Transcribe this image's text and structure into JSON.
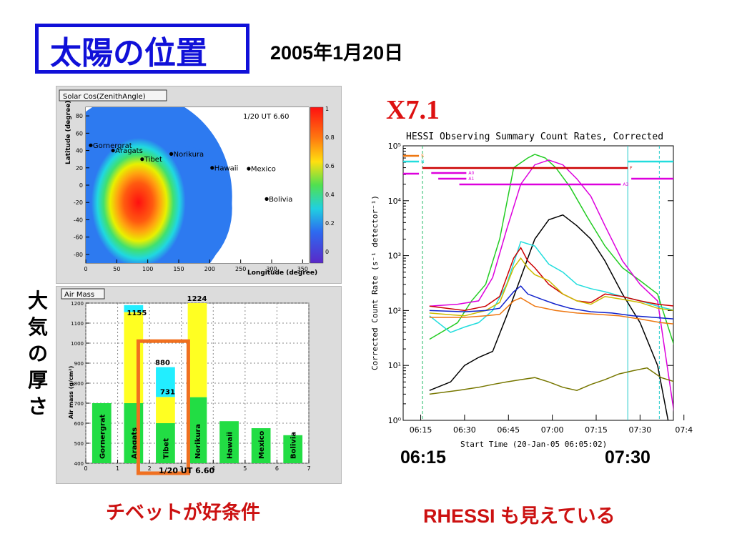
{
  "header": {
    "title": "太陽の位置",
    "date": "2005年1月20日"
  },
  "side_label": "大気の厚さ",
  "captions": {
    "left": "チベットが好条件",
    "right": "RHESSI も見えている",
    "flare_class": "X7.1",
    "time_start": "06:15",
    "time_end": "07:30"
  },
  "colors": {
    "title_blue": "#1010d8",
    "caption_red": "#cc1111",
    "highlight_orange": "#f07020",
    "bar_green": "#22dd44",
    "bar_yellow": "#ffff22",
    "bar_cyan": "#22eeff"
  },
  "chart_data": [
    {
      "type": "heatmap",
      "title": "Solar Cos(ZenithAngle)",
      "annotation": "1/20  UT  6.60",
      "xlabel": "Longitude (degree)",
      "ylabel": "Latitude (degree)",
      "xlim": [
        0,
        360
      ],
      "ylim": [
        -90,
        90
      ],
      "xticks": [
        0,
        50,
        100,
        150,
        200,
        250,
        300,
        350
      ],
      "yticks": [
        80,
        60,
        40,
        20,
        0,
        -20,
        -40,
        -60,
        -80
      ],
      "colorbar_ticks": [
        "1",
        "0.8",
        "0.6",
        "0.4",
        "0.2",
        "0"
      ],
      "peak": {
        "lon": 85,
        "lat": -20
      },
      "sites": [
        {
          "name": "Gornergrat",
          "lon": 8,
          "lat": 46
        },
        {
          "name": "Aragats",
          "lon": 44,
          "lat": 40
        },
        {
          "name": "Tibet",
          "lon": 91,
          "lat": 30
        },
        {
          "name": "Norikura",
          "lon": 138,
          "lat": 36
        },
        {
          "name": "Hawaii",
          "lon": 204,
          "lat": 20
        },
        {
          "name": "Mexico",
          "lon": 263,
          "lat": 19
        },
        {
          "name": "Bolivia",
          "lon": 292,
          "lat": -16
        }
      ]
    },
    {
      "type": "bar",
      "title": "Air Mass",
      "annotation": "1/20  UT  6.60",
      "ylabel": "Air mass (g/cm²)",
      "xlim": [
        0,
        7
      ],
      "ylim": [
        400,
        1200
      ],
      "xticks": [
        0,
        1,
        2,
        3,
        4,
        5,
        6,
        7
      ],
      "yticks": [
        400,
        500,
        600,
        700,
        800,
        900,
        1000,
        1100,
        1200
      ],
      "categories": [
        "Gornergrat",
        "Aragats",
        "Tibet",
        "Norikura",
        "Hawaii",
        "Mexico",
        "Bolivia"
      ],
      "series": [
        {
          "values": [
            700,
            700,
            600,
            730,
            610,
            575,
            540
          ]
        },
        {
          "values": [
            700,
            1155,
            731,
            1224,
            610,
            575,
            540
          ]
        },
        {
          "values": [
            700,
            1190,
            880,
            1224,
            610,
            575,
            540
          ]
        }
      ],
      "data_labels": [
        "",
        "1155",
        "880",
        "1224",
        "",
        "",
        ""
      ],
      "extra_label": "731",
      "highlight": "Tibet"
    },
    {
      "type": "line",
      "title": "HESSI Observing Summary Count Rates, Corrected",
      "xlabel": "Start Time (20-Jan-05 06:05:02)",
      "ylabel": "Corrected Count Rate (s⁻¹ detector⁻¹)",
      "yscale": "log",
      "ylim": [
        1,
        100000
      ],
      "ytick_labels": [
        "10⁵",
        "10⁴",
        "10³",
        "10²",
        "10¹",
        "10⁰"
      ],
      "xtick_labels": [
        "06:15",
        "06:30",
        "06:45",
        "07:00",
        "07:15",
        "07:30",
        "07:4"
      ],
      "attenuator_labels": [
        "S",
        "N",
        "F",
        "A0",
        "A1",
        "A3"
      ],
      "series": [
        {
          "name": "green",
          "color": "#22cc22",
          "x": [
            0,
            8,
            12,
            16,
            20,
            24,
            28,
            30,
            33,
            36,
            40,
            45,
            50,
            55,
            60,
            65,
            70,
            72
          ],
          "y": [
            30,
            60,
            150,
            300,
            2000,
            40000,
            60000,
            70000,
            60000,
            40000,
            18000,
            5000,
            1500,
            600,
            350,
            200,
            20,
            30
          ]
        },
        {
          "name": "magenta",
          "color": "#dd00dd",
          "x": [
            0,
            8,
            14,
            18,
            22,
            26,
            30,
            34,
            38,
            42,
            46,
            50,
            55,
            60,
            65,
            70,
            72
          ],
          "y": [
            120,
            130,
            150,
            400,
            3000,
            20000,
            45000,
            55000,
            45000,
            25000,
            12000,
            3500,
            800,
            300,
            150,
            1,
            1
          ]
        },
        {
          "name": "black",
          "color": "#000000",
          "x": [
            0,
            6,
            10,
            14,
            18,
            22,
            26,
            30,
            34,
            38,
            42,
            46,
            50,
            55,
            60,
            65,
            68
          ],
          "y": [
            3.5,
            5,
            10,
            14,
            18,
            80,
            400,
            2000,
            4500,
            5500,
            3500,
            2000,
            800,
            200,
            60,
            10,
            1
          ]
        },
        {
          "name": "cyan",
          "color": "#22dddd",
          "x": [
            0,
            6,
            10,
            14,
            18,
            22,
            26,
            30,
            34,
            38,
            42,
            46,
            50,
            55,
            60,
            65,
            70,
            72
          ],
          "y": [
            80,
            40,
            50,
            60,
            100,
            300,
            1800,
            1500,
            700,
            500,
            300,
            250,
            220,
            180,
            150,
            120,
            100,
            80
          ]
        },
        {
          "name": "red",
          "color": "#cc0000",
          "x": [
            0,
            10,
            16,
            20,
            24,
            26,
            28,
            30,
            34,
            38,
            42,
            46,
            50,
            55,
            60,
            65,
            70,
            72
          ],
          "y": [
            120,
            100,
            120,
            180,
            900,
            1400,
            800,
            600,
            300,
            200,
            150,
            140,
            200,
            180,
            150,
            130,
            120,
            110
          ]
        },
        {
          "name": "yellow",
          "color": "#ccbb00",
          "x": [
            0,
            10,
            16,
            20,
            24,
            26,
            28,
            30,
            34,
            38,
            42,
            46,
            50,
            55,
            60,
            65,
            70,
            72
          ],
          "y": [
            90,
            80,
            100,
            140,
            600,
            900,
            600,
            450,
            350,
            200,
            150,
            130,
            180,
            160,
            140,
            110,
            100,
            130
          ]
        },
        {
          "name": "blue",
          "color": "#1122cc",
          "x": [
            0,
            10,
            16,
            20,
            24,
            26,
            28,
            32,
            36,
            40,
            46,
            52,
            58,
            64,
            70,
            72
          ],
          "y": [
            100,
            95,
            100,
            110,
            220,
            280,
            200,
            160,
            130,
            110,
            95,
            90,
            80,
            75,
            70,
            65
          ]
        },
        {
          "name": "orange",
          "color": "#ee7711",
          "x": [
            0,
            10,
            16,
            20,
            24,
            26,
            30,
            36,
            42,
            48,
            54,
            60,
            66,
            72
          ],
          "y": [
            75,
            75,
            80,
            85,
            150,
            170,
            120,
            100,
            90,
            85,
            80,
            70,
            60,
            55
          ]
        },
        {
          "name": "olive",
          "color": "#777700",
          "x": [
            0,
            8,
            14,
            18,
            22,
            26,
            30,
            34,
            38,
            42,
            46,
            50,
            54,
            58,
            62,
            66,
            70,
            72
          ],
          "y": [
            3,
            3.5,
            4,
            4.5,
            5,
            5.5,
            6,
            5,
            4,
            3.5,
            4.5,
            5.5,
            7,
            8,
            9,
            6,
            5,
            4.5
          ]
        }
      ]
    }
  ]
}
